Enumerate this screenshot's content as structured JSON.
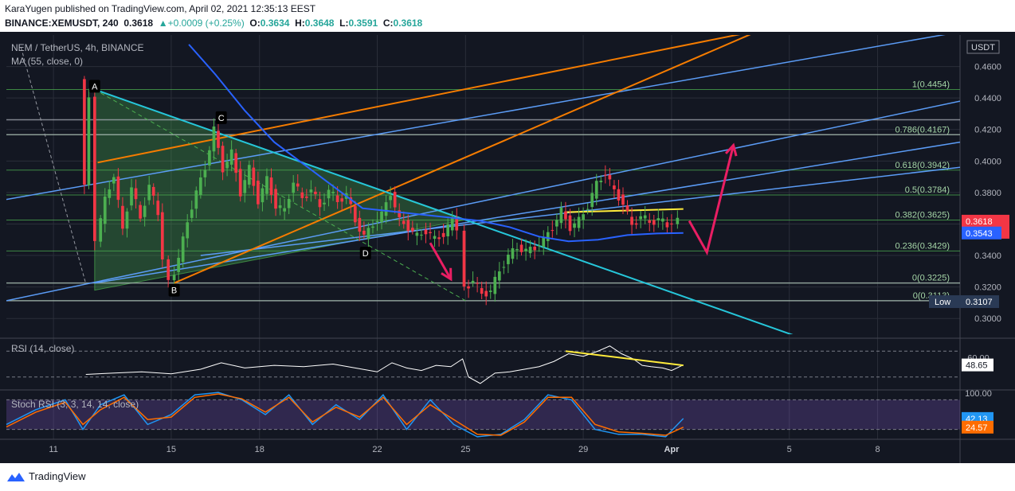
{
  "header": {
    "publish_line": "KaraYugen published on TradingView.com, April 02, 2021 12:35:13 EEST",
    "symbol": "BINANCE:XEMUSDT, 240",
    "last": "0.3618",
    "change_arrow": "▲",
    "change": "+0.0009 (+0.25%)",
    "o_label": "O:",
    "o": "0.3634",
    "h_label": "H:",
    "h": "0.3648",
    "l_label": "L:",
    "l": "0.3591",
    "c_label": "C:",
    "c": "0.3618"
  },
  "legend": {
    "title": "NEM / TetherUS, 4h, BINANCE",
    "ma": "MA (55, close, 0)",
    "rsi": "RSI (14, close)",
    "stoch": "Stoch RSI (3, 3, 14, 14, close)"
  },
  "footer": {
    "brand": "TradingView",
    "logo_icon": "tradingview-logo-icon"
  },
  "colors": {
    "background": "#131722",
    "bull": "#4caf50",
    "bear": "#f23645",
    "grid": "#2a2e39",
    "fib": "#4caf50",
    "channel": "#5b9cf6",
    "orange": "#f57c00",
    "cyan": "#26c6da",
    "ma": "#2962ff",
    "yellow": "#ffeb3b",
    "annotation": "#e91e63",
    "rsi": "#ffffff",
    "stoch_k": "#2196f3",
    "stoch_d": "#ff6d00",
    "band": "#7e57c2"
  },
  "chart_data": [
    {
      "type": "candlestick",
      "title": "NEM / TetherUS, 4h, BINANCE",
      "currency": "USDT",
      "ylim": [
        0.29,
        0.48
      ],
      "y_ticks": [
        "0.3000",
        "0.3200",
        "0.3400",
        "0.3600",
        "0.3800",
        "0.4000",
        "0.4200",
        "0.4400",
        "0.4600",
        "0.4800"
      ],
      "x_ticks": [
        "11",
        "15",
        "18",
        "22",
        "25",
        "29",
        "Apr",
        "5",
        "8"
      ],
      "x_tick_days": [
        11,
        15,
        18,
        22,
        25,
        29,
        32,
        36,
        39
      ],
      "xlim_days": [
        9.4,
        41.8
      ],
      "data_end_day": 32.4,
      "price_badge": {
        "value": "0.3618",
        "countdown": "02:24:53",
        "color": "#f23645"
      },
      "ma_badge": {
        "value": "0.3543",
        "color": "#2962ff"
      },
      "low_badge": {
        "label": "Low",
        "value": "0.3107"
      },
      "fib_levels": [
        {
          "label": "1(0.4454)",
          "price": 0.4454
        },
        {
          "label": "0.786(0.4167)",
          "price": 0.4167
        },
        {
          "label": "0.618(0.3942)",
          "price": 0.3942
        },
        {
          "label": "0.5(0.3784)",
          "price": 0.3784
        },
        {
          "label": "0.382(0.3625)",
          "price": 0.3625
        },
        {
          "label": "0.236(0.3429)",
          "price": 0.3429
        },
        {
          "label": "0(0.3225)",
          "price": 0.3225
        },
        {
          "label": "0(0.3113)",
          "price": 0.3113
        }
      ],
      "horizontal_levels": [
        0.4262,
        0.4167,
        0.3225,
        0.3113
      ],
      "labels": [
        {
          "text": "A",
          "day": 12.4,
          "price": 0.4475
        },
        {
          "text": "B",
          "day": 15.1,
          "price": 0.318
        },
        {
          "text": "C",
          "day": 16.7,
          "price": 0.4275
        },
        {
          "text": "D",
          "day": 21.6,
          "price": 0.3415
        }
      ],
      "ohlc_path": [
        [
          12.05,
          0.452
        ],
        [
          12.2,
          0.385
        ],
        [
          12.4,
          0.44
        ],
        [
          12.6,
          0.35
        ],
        [
          12.9,
          0.375
        ],
        [
          13.2,
          0.392
        ],
        [
          13.5,
          0.355
        ],
        [
          13.8,
          0.385
        ],
        [
          14.1,
          0.362
        ],
        [
          14.4,
          0.386
        ],
        [
          14.7,
          0.365
        ],
        [
          14.9,
          0.34
        ],
        [
          15.1,
          0.322
        ],
        [
          15.4,
          0.338
        ],
        [
          15.7,
          0.362
        ],
        [
          16.0,
          0.38
        ],
        [
          16.3,
          0.396
        ],
        [
          16.6,
          0.42
        ],
        [
          16.9,
          0.395
        ],
        [
          17.2,
          0.405
        ],
        [
          17.5,
          0.38
        ],
        [
          17.8,
          0.395
        ],
        [
          18.1,
          0.375
        ],
        [
          18.4,
          0.388
        ],
        [
          18.7,
          0.372
        ],
        [
          19.0,
          0.368
        ],
        [
          19.3,
          0.388
        ],
        [
          19.6,
          0.375
        ],
        [
          19.9,
          0.383
        ],
        [
          20.2,
          0.37
        ],
        [
          20.5,
          0.382
        ],
        [
          20.8,
          0.374
        ],
        [
          21.1,
          0.379
        ],
        [
          21.4,
          0.362
        ],
        [
          21.7,
          0.352
        ],
        [
          22.0,
          0.36
        ],
        [
          22.3,
          0.366
        ],
        [
          22.6,
          0.38
        ],
        [
          22.9,
          0.362
        ],
        [
          23.2,
          0.358
        ],
        [
          23.5,
          0.352
        ],
        [
          23.8,
          0.356
        ],
        [
          24.1,
          0.35
        ],
        [
          24.4,
          0.354
        ],
        [
          24.7,
          0.362
        ],
        [
          24.95,
          0.358
        ],
        [
          25.1,
          0.318
        ],
        [
          25.4,
          0.325
        ],
        [
          25.7,
          0.315
        ],
        [
          26.0,
          0.318
        ],
        [
          26.3,
          0.33
        ],
        [
          26.6,
          0.34
        ],
        [
          26.9,
          0.345
        ],
        [
          27.2,
          0.343
        ],
        [
          27.5,
          0.345
        ],
        [
          27.8,
          0.35
        ],
        [
          28.1,
          0.358
        ],
        [
          28.4,
          0.368
        ],
        [
          28.7,
          0.358
        ],
        [
          29.0,
          0.362
        ],
        [
          29.3,
          0.372
        ],
        [
          29.6,
          0.385
        ],
        [
          29.9,
          0.393
        ],
        [
          30.2,
          0.38
        ],
        [
          30.5,
          0.374
        ],
        [
          30.8,
          0.358
        ],
        [
          31.1,
          0.366
        ],
        [
          31.4,
          0.36
        ],
        [
          31.7,
          0.364
        ],
        [
          32.0,
          0.358
        ],
        [
          32.2,
          0.362
        ],
        [
          32.4,
          0.3618
        ]
      ],
      "ma_path": [
        [
          15.6,
          0.474
        ],
        [
          16.5,
          0.455
        ],
        [
          17.5,
          0.432
        ],
        [
          18.5,
          0.412
        ],
        [
          19.5,
          0.398
        ],
        [
          20.5,
          0.384
        ],
        [
          21.5,
          0.37
        ],
        [
          22.5,
          0.368
        ],
        [
          23.5,
          0.366
        ],
        [
          24.5,
          0.364
        ],
        [
          25.5,
          0.362
        ],
        [
          26.5,
          0.358
        ],
        [
          27.5,
          0.352
        ],
        [
          28.5,
          0.349
        ],
        [
          29.5,
          0.35
        ],
        [
          30.5,
          0.353
        ],
        [
          31.5,
          0.354
        ],
        [
          32.4,
          0.3543
        ]
      ],
      "lines": [
        {
          "kind": "channel",
          "from": [
            9.4,
            0.3113
          ],
          "to": [
            41.8,
            0.438
          ]
        },
        {
          "kind": "channel",
          "from": [
            9.4,
            0.3756
          ],
          "to": [
            41.8,
            0.482
          ]
        },
        {
          "kind": "channel",
          "from": [
            12.4,
            0.3225
          ],
          "to": [
            41.8,
            0.412
          ]
        },
        {
          "kind": "channel",
          "from": [
            16.0,
            0.34
          ],
          "to": [
            41.8,
            0.396
          ]
        },
        {
          "kind": "orange",
          "from": [
            12.5,
            0.399
          ],
          "to": [
            35.0,
            0.483
          ]
        },
        {
          "kind": "orange",
          "from": [
            15.1,
            0.3225
          ],
          "to": [
            35.0,
            0.483
          ]
        },
        {
          "kind": "cyan",
          "from": [
            12.4,
            0.4454
          ],
          "to": [
            36.2,
            0.289
          ]
        },
        {
          "kind": "grey_dash",
          "from": [
            9.9,
            0.472
          ],
          "to": [
            12.1,
            0.322
          ]
        },
        {
          "kind": "green_dash",
          "from": [
            12.4,
            0.4454
          ],
          "to": [
            25.0,
            0.3113
          ]
        },
        {
          "kind": "yellow",
          "from": [
            28.4,
            0.3675
          ],
          "to": [
            32.4,
            0.3695
          ]
        }
      ],
      "triangle": [
        [
          12.4,
          0.4454
        ],
        [
          12.4,
          0.318
        ],
        [
          24.95,
          0.3625
        ]
      ],
      "arrows": [
        {
          "kind": "zigzag",
          "points": [
            [
              32.6,
              0.362
            ],
            [
              33.2,
              0.342
            ],
            [
              34.1,
              0.41
            ]
          ]
        },
        {
          "kind": "down",
          "points": [
            [
              23.8,
              0.348
            ],
            [
              24.5,
              0.325
            ]
          ]
        }
      ]
    },
    {
      "type": "line",
      "title": "RSI (14, close)",
      "ylim": [
        10,
        90
      ],
      "y_ticks": [
        "60.00"
      ],
      "band": [
        30,
        70
      ],
      "last_value": "48.65",
      "x": [
        12.1,
        13.0,
        14.0,
        15.0,
        16.0,
        16.7,
        17.5,
        18.5,
        19.5,
        20.5,
        21.5,
        22.0,
        22.5,
        23.0,
        23.5,
        24.0,
        24.5,
        24.9,
        25.1,
        25.5,
        26.0,
        26.5,
        27.0,
        27.5,
        28.0,
        28.5,
        29.0,
        29.5,
        29.9,
        30.3,
        30.7,
        31.0,
        31.3,
        31.7,
        32.0,
        32.4
      ],
      "values": [
        34,
        36,
        38,
        35,
        42,
        52,
        44,
        48,
        46,
        50,
        42,
        38,
        52,
        44,
        40,
        48,
        46,
        58,
        30,
        20,
        36,
        38,
        42,
        46,
        54,
        66,
        62,
        70,
        78,
        66,
        58,
        48,
        46,
        44,
        40,
        48.65
      ],
      "divergence": [
        [
          28.4,
          70
        ],
        [
          32.4,
          48
        ]
      ]
    },
    {
      "type": "line",
      "title": "Stoch RSI (3, 3, 14, 14, close)",
      "ylim": [
        0,
        100
      ],
      "y_ticks": [
        "100.00"
      ],
      "band": [
        20,
        80
      ],
      "k_label": "42.13",
      "d_label": "24.57",
      "x": [
        9.4,
        10.4,
        11.4,
        12.0,
        12.6,
        13.4,
        14.2,
        15.0,
        15.8,
        16.6,
        17.4,
        18.2,
        19.0,
        19.8,
        20.6,
        21.4,
        22.2,
        23.0,
        23.8,
        24.6,
        25.4,
        26.2,
        27.0,
        27.8,
        28.6,
        29.4,
        30.2,
        31.0,
        31.8,
        32.4
      ],
      "series": [
        {
          "name": "K",
          "values": [
            30,
            60,
            80,
            20,
            70,
            90,
            30,
            50,
            90,
            95,
            80,
            50,
            90,
            30,
            70,
            40,
            90,
            20,
            80,
            30,
            5,
            10,
            40,
            90,
            80,
            20,
            10,
            10,
            5,
            42.13
          ]
        },
        {
          "name": "D",
          "values": [
            25,
            55,
            75,
            30,
            60,
            85,
            40,
            45,
            85,
            92,
            82,
            55,
            85,
            35,
            65,
            45,
            85,
            30,
            70,
            40,
            10,
            8,
            35,
            85,
            85,
            30,
            15,
            12,
            8,
            24.57
          ]
        }
      ]
    }
  ]
}
